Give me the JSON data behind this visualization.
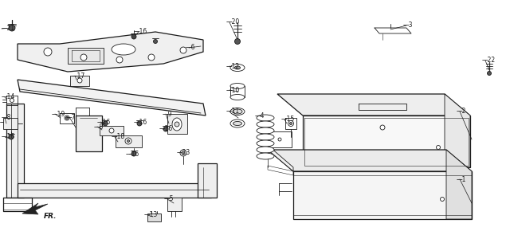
{
  "bg_color": "#f5f5f0",
  "line_color": "#1a1a1a",
  "fig_width": 6.4,
  "fig_height": 3.0,
  "dpi": 100
}
